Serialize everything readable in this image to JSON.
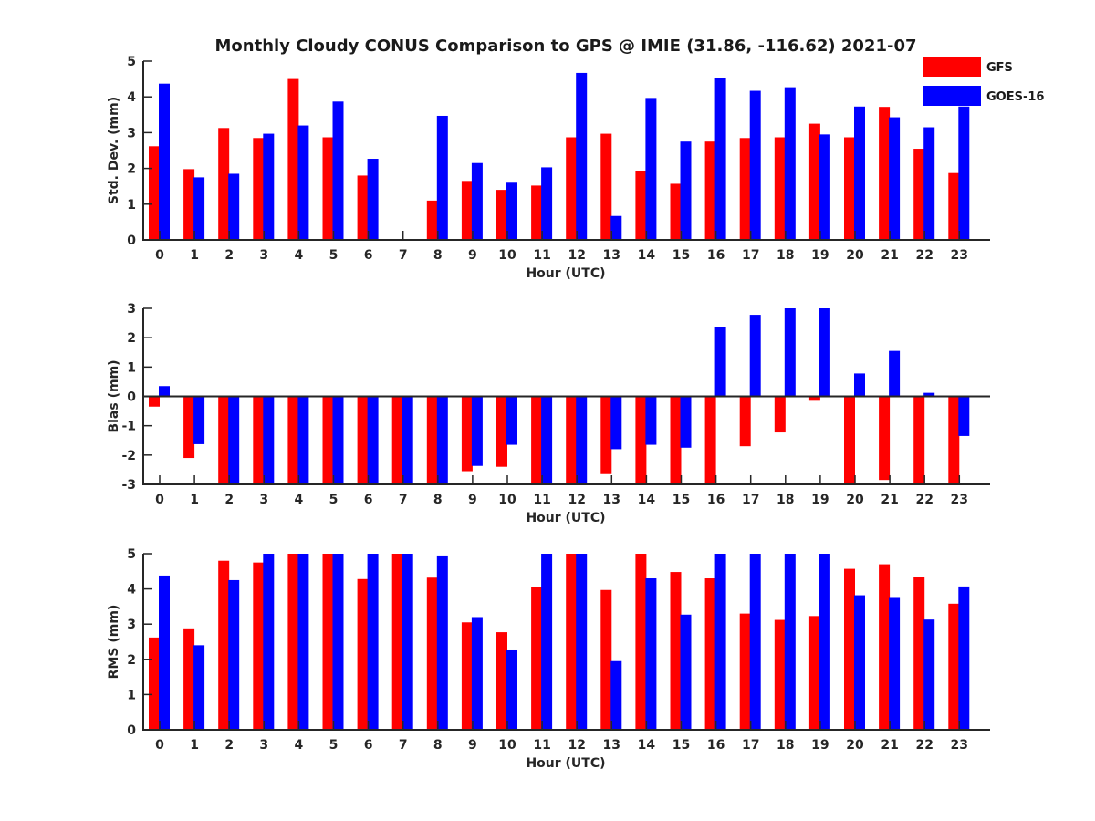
{
  "chart_data": {
    "type": "bar",
    "title": "Monthly Cloudy CONUS Comparison to GPS @ IMIE (31.86, -116.62) 2021-07",
    "legend": {
      "position": "top-right",
      "entries": [
        {
          "name": "GFS",
          "color": "#ff0000"
        },
        {
          "name": "GOES-16",
          "color": "#0000ff"
        }
      ]
    },
    "categories": [
      "0",
      "1",
      "2",
      "3",
      "4",
      "5",
      "6",
      "7",
      "8",
      "9",
      "10",
      "11",
      "12",
      "13",
      "14",
      "15",
      "16",
      "17",
      "18",
      "19",
      "20",
      "21",
      "22",
      "23"
    ],
    "panels": [
      {
        "id": "std",
        "ylabel": "Std. Dev. (mm)",
        "xlabel": "Hour (UTC)",
        "ylim": [
          0,
          5
        ],
        "yticks": [
          0,
          1,
          2,
          3,
          4,
          5
        ],
        "series": [
          {
            "name": "GFS",
            "color": "#ff0000",
            "values": [
              2.62,
              1.98,
              3.13,
              2.85,
              4.5,
              2.87,
              1.8,
              null,
              1.1,
              1.65,
              1.4,
              1.52,
              2.87,
              2.97,
              1.93,
              1.57,
              2.75,
              2.85,
              2.87,
              3.25,
              2.87,
              3.72,
              2.55,
              1.87
            ]
          },
          {
            "name": "GOES-16",
            "color": "#0000ff",
            "values": [
              4.37,
              1.75,
              1.85,
              2.97,
              3.2,
              3.87,
              2.27,
              null,
              3.47,
              2.15,
              1.6,
              2.03,
              4.67,
              0.67,
              3.97,
              2.75,
              4.52,
              4.17,
              4.27,
              2.95,
              3.73,
              3.43,
              3.15,
              3.73
            ]
          }
        ]
      },
      {
        "id": "bias",
        "ylabel": "Bias (mm)",
        "xlabel": "Hour (UTC)",
        "ylim": [
          -3,
          3
        ],
        "yticks": [
          -3,
          -2,
          -1,
          0,
          1,
          2,
          3
        ],
        "series": [
          {
            "name": "GFS",
            "color": "#ff0000",
            "values": [
              -0.35,
              -2.1,
              -3,
              -3,
              -3,
              -3,
              -3,
              -3,
              -3,
              -2.55,
              -2.4,
              -3,
              -3,
              -2.65,
              -3,
              -3,
              -3,
              -1.7,
              -1.23,
              -0.15,
              -3,
              -2.85,
              -3,
              -3
            ]
          },
          {
            "name": "GOES-16",
            "color": "#0000ff",
            "values": [
              0.35,
              -1.63,
              -3,
              -3,
              -3,
              -3,
              -3,
              -3,
              -3,
              -2.37,
              -1.65,
              -3,
              -3,
              -1.8,
              -1.65,
              -1.75,
              2.35,
              2.78,
              3,
              3,
              0.78,
              1.55,
              0.12,
              -1.35
            ]
          }
        ]
      },
      {
        "id": "rms",
        "ylabel": "RMS (mm)",
        "xlabel": "Hour (UTC)",
        "ylim": [
          0,
          5
        ],
        "yticks": [
          0,
          1,
          2,
          3,
          4,
          5
        ],
        "series": [
          {
            "name": "GFS",
            "color": "#ff0000",
            "values": [
              2.62,
              2.88,
              4.8,
              4.75,
              5,
              5,
              4.28,
              5,
              4.32,
              3.05,
              2.77,
              4.05,
              5,
              3.97,
              5,
              4.48,
              4.3,
              3.3,
              3.12,
              3.23,
              4.57,
              4.7,
              4.33,
              3.58
            ]
          },
          {
            "name": "GOES-16",
            "color": "#0000ff",
            "values": [
              4.38,
              2.4,
              4.25,
              5,
              5,
              5,
              5,
              5,
              4.95,
              3.2,
              2.28,
              5,
              5,
              1.95,
              4.3,
              3.27,
              5,
              5,
              5,
              5,
              3.82,
              3.77,
              3.13,
              4.07
            ]
          }
        ]
      }
    ]
  }
}
